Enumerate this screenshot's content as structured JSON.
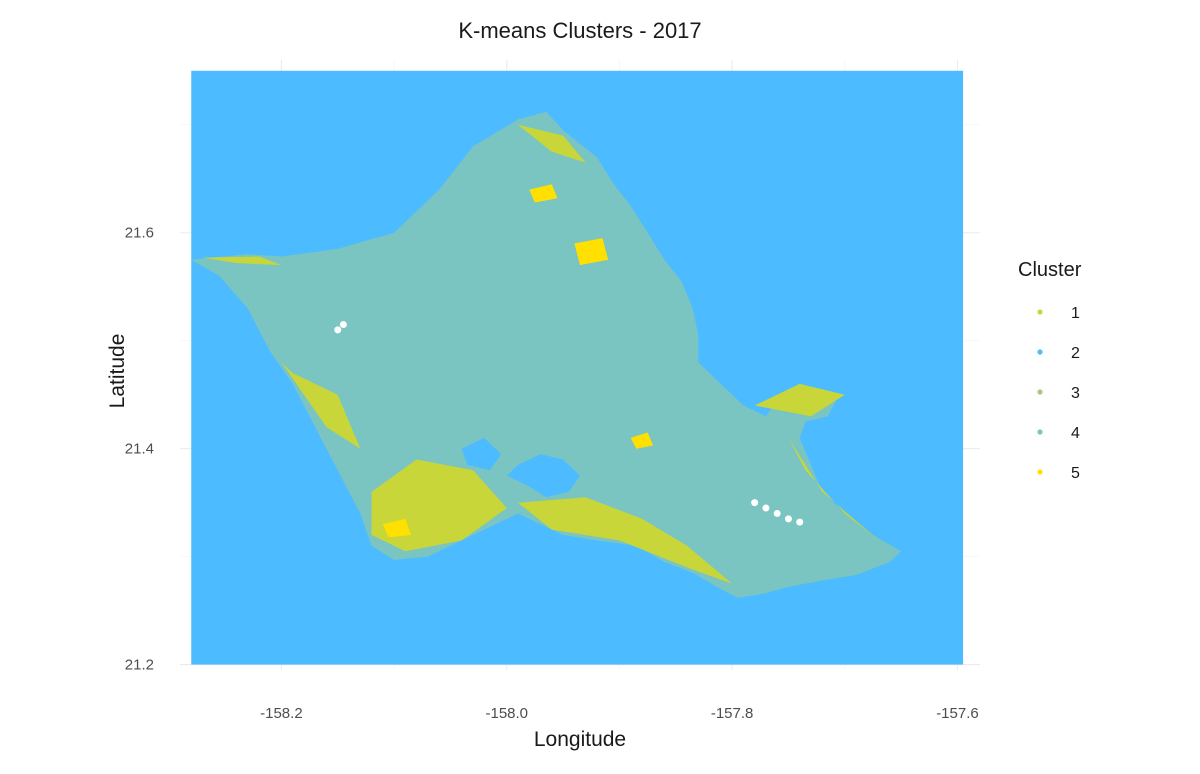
{
  "chart_data": {
    "type": "raster-map",
    "title": "K-means Clusters - 2017",
    "xlabel": "Longitude",
    "ylabel": "Latitude",
    "xlim": [
      -158.29,
      -157.58
    ],
    "ylim": [
      21.195,
      21.76
    ],
    "x_ticks": [
      {
        "value": -158.2,
        "label": "-158.2"
      },
      {
        "value": -158.0,
        "label": "-158.0"
      },
      {
        "value": -157.8,
        "label": "-157.8"
      },
      {
        "value": -157.6,
        "label": "-157.6"
      }
    ],
    "y_ticks": [
      {
        "value": 21.2,
        "label": "21.2"
      },
      {
        "value": 21.4,
        "label": "21.4"
      },
      {
        "value": 21.6,
        "label": "21.6"
      }
    ],
    "grid": true,
    "legend": {
      "title": "Cluster",
      "placement": "right",
      "entries": [
        {
          "label": "1",
          "color": "#c8d63a"
        },
        {
          "label": "2",
          "color": "#4dbbff"
        },
        {
          "label": "3",
          "color": "#a8c880"
        },
        {
          "label": "4",
          "color": "#7ac5c1"
        },
        {
          "label": "5",
          "color": "#ffe000"
        }
      ]
    },
    "raster_extent": {
      "lon": [
        -158.28,
        -157.595
      ],
      "lat": [
        21.2
      ],
      "lat_max": 21.75
    },
    "background_cluster": "2",
    "island_outline": [
      [
        -158.28,
        21.575
      ],
      [
        -158.23,
        21.58
      ],
      [
        -158.2,
        21.578
      ],
      [
        -158.15,
        21.585
      ],
      [
        -158.1,
        21.6
      ],
      [
        -158.06,
        21.64
      ],
      [
        -158.03,
        21.68
      ],
      [
        -157.99,
        21.705
      ],
      [
        -157.965,
        21.712
      ],
      [
        -157.95,
        21.695
      ],
      [
        -157.92,
        21.67
      ],
      [
        -157.905,
        21.645
      ],
      [
        -157.89,
        21.625
      ],
      [
        -157.875,
        21.6
      ],
      [
        -157.86,
        21.575
      ],
      [
        -157.845,
        21.555
      ],
      [
        -157.835,
        21.53
      ],
      [
        -157.83,
        21.505
      ],
      [
        -157.83,
        21.48
      ],
      [
        -157.81,
        21.46
      ],
      [
        -157.79,
        21.44
      ],
      [
        -157.77,
        21.43
      ],
      [
        -157.76,
        21.445
      ],
      [
        -157.75,
        21.452
      ],
      [
        -157.725,
        21.455
      ],
      [
        -157.705,
        21.45
      ],
      [
        -157.715,
        21.43
      ],
      [
        -157.735,
        21.425
      ],
      [
        -157.74,
        21.41
      ],
      [
        -157.73,
        21.385
      ],
      [
        -157.72,
        21.36
      ],
      [
        -157.7,
        21.34
      ],
      [
        -157.675,
        21.32
      ],
      [
        -157.65,
        21.305
      ],
      [
        -157.66,
        21.295
      ],
      [
        -157.69,
        21.283
      ],
      [
        -157.72,
        21.278
      ],
      [
        -157.75,
        21.272
      ],
      [
        -157.775,
        21.265
      ],
      [
        -157.795,
        21.262
      ],
      [
        -157.81,
        21.27
      ],
      [
        -157.835,
        21.285
      ],
      [
        -157.86,
        21.295
      ],
      [
        -157.885,
        21.31
      ],
      [
        -157.92,
        21.315
      ],
      [
        -157.95,
        21.32
      ],
      [
        -157.97,
        21.33
      ],
      [
        -157.99,
        21.34
      ],
      [
        -158.01,
        21.33
      ],
      [
        -158.04,
        21.315
      ],
      [
        -158.07,
        21.3
      ],
      [
        -158.1,
        21.297
      ],
      [
        -158.12,
        21.31
      ],
      [
        -158.13,
        21.34
      ],
      [
        -158.15,
        21.38
      ],
      [
        -158.17,
        21.42
      ],
      [
        -158.19,
        21.46
      ],
      [
        -158.21,
        21.49
      ],
      [
        -158.23,
        21.53
      ],
      [
        -158.255,
        21.56
      ]
    ],
    "inland_water": [
      [
        [
          -157.99,
          21.385
        ],
        [
          -157.97,
          21.395
        ],
        [
          -157.95,
          21.39
        ],
        [
          -157.935,
          21.375
        ],
        [
          -157.945,
          21.36
        ],
        [
          -157.965,
          21.355
        ],
        [
          -157.98,
          21.365
        ],
        [
          -158.0,
          21.375
        ]
      ],
      [
        [
          -158.04,
          21.4
        ],
        [
          -158.02,
          21.41
        ],
        [
          -158.005,
          21.395
        ],
        [
          -158.015,
          21.38
        ],
        [
          -158.035,
          21.385
        ]
      ]
    ],
    "yellow_patches": [
      [
        [
          -158.12,
          21.36
        ],
        [
          -158.08,
          21.39
        ],
        [
          -158.03,
          21.38
        ],
        [
          -158.0,
          21.345
        ],
        [
          -158.04,
          21.315
        ],
        [
          -158.09,
          21.305
        ],
        [
          -158.12,
          21.32
        ]
      ],
      [
        [
          -157.99,
          21.35
        ],
        [
          -157.93,
          21.355
        ],
        [
          -157.88,
          21.335
        ],
        [
          -157.84,
          21.31
        ],
        [
          -157.8,
          21.275
        ],
        [
          -157.84,
          21.29
        ],
        [
          -157.9,
          21.315
        ],
        [
          -157.96,
          21.325
        ]
      ],
      [
        [
          -158.19,
          21.47
        ],
        [
          -158.15,
          21.45
        ],
        [
          -158.13,
          21.4
        ],
        [
          -158.16,
          21.42
        ],
        [
          -158.2,
          21.48
        ]
      ],
      [
        [
          -157.99,
          21.7
        ],
        [
          -157.95,
          21.69
        ],
        [
          -157.93,
          21.665
        ],
        [
          -157.96,
          21.675
        ]
      ],
      [
        [
          -157.78,
          21.44
        ],
        [
          -157.73,
          21.43
        ],
        [
          -157.7,
          21.45
        ],
        [
          -157.74,
          21.46
        ]
      ],
      [
        [
          -157.75,
          21.41
        ],
        [
          -157.72,
          21.36
        ],
        [
          -157.67,
          21.315
        ],
        [
          -157.7,
          21.34
        ],
        [
          -157.735,
          21.38
        ]
      ],
      [
        [
          -158.27,
          21.577
        ],
        [
          -158.22,
          21.578
        ],
        [
          -158.2,
          21.57
        ],
        [
          -158.24,
          21.572
        ]
      ]
    ],
    "bright_patches": [
      [
        [
          -157.98,
          21.64
        ],
        [
          -157.96,
          21.645
        ],
        [
          -157.955,
          21.632
        ],
        [
          -157.975,
          21.628
        ]
      ],
      [
        [
          -157.94,
          21.59
        ],
        [
          -157.915,
          21.595
        ],
        [
          -157.91,
          21.575
        ],
        [
          -157.935,
          21.57
        ]
      ],
      [
        [
          -158.11,
          21.33
        ],
        [
          -158.09,
          21.335
        ],
        [
          -158.085,
          21.32
        ],
        [
          -158.105,
          21.318
        ]
      ],
      [
        [
          -157.89,
          21.41
        ],
        [
          -157.875,
          21.415
        ],
        [
          -157.87,
          21.403
        ],
        [
          -157.885,
          21.4
        ]
      ]
    ],
    "clear_spots": [
      [
        -158.145,
        21.515
      ],
      [
        -158.15,
        21.51
      ],
      [
        -157.78,
        21.35
      ],
      [
        -157.76,
        21.34
      ],
      [
        -157.75,
        21.335
      ],
      [
        -157.74,
        21.332
      ],
      [
        -157.77,
        21.345
      ]
    ]
  }
}
